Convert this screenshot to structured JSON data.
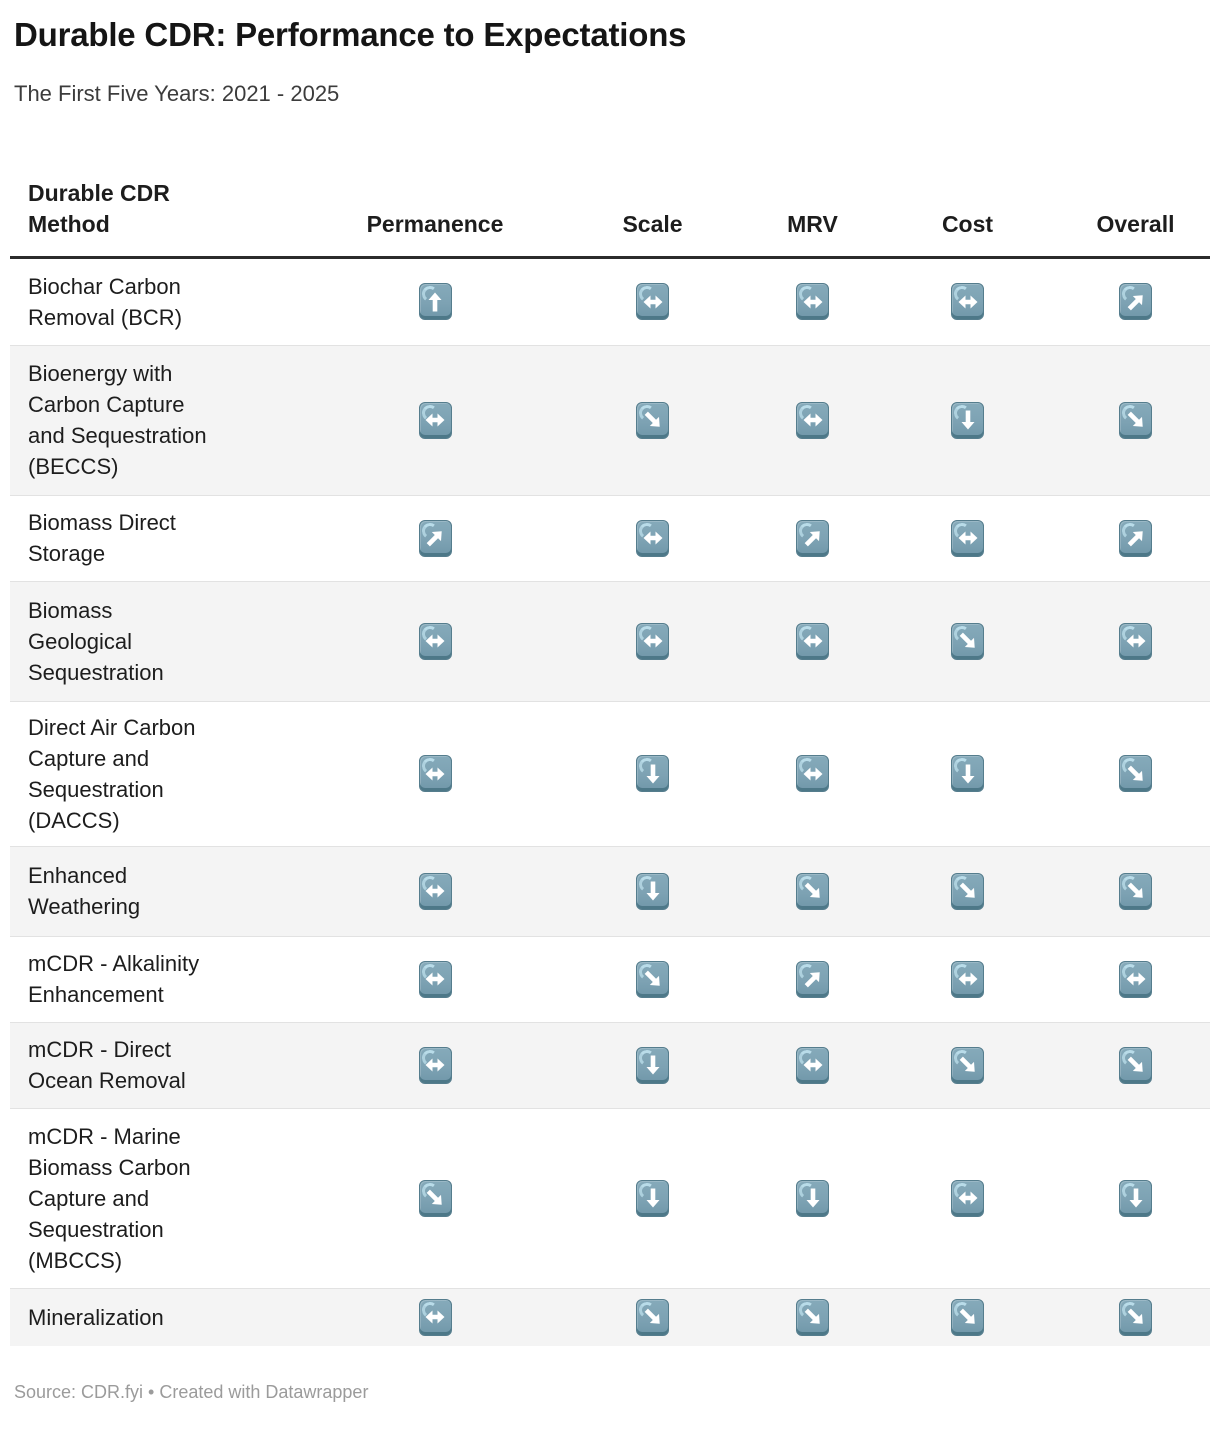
{
  "header": {
    "title": "Durable CDR: Performance to Expectations",
    "subtitle": "The First Five Years: 2021 - 2025"
  },
  "table": {
    "columns": [
      "Durable CDR\nMethod",
      "Permanence",
      "Scale",
      "MRV",
      "Cost",
      "Overall"
    ]
  },
  "chart_data": {
    "type": "table",
    "title": "Durable CDR: Performance to Expectations",
    "subtitle": "The First Five Years: 2021 - 2025",
    "columns": [
      "Durable CDR Method",
      "Permanence",
      "Scale",
      "MRV",
      "Cost",
      "Overall"
    ],
    "arrow_values_legend": [
      "up",
      "up-right",
      "sideways",
      "down-right",
      "down"
    ],
    "rows": [
      {
        "method": "Biochar Carbon\nRemoval (BCR)",
        "ratings": [
          "up",
          "sideways",
          "sideways",
          "sideways",
          "up-right"
        ]
      },
      {
        "method": "Bioenergy with\nCarbon Capture\nand Sequestration\n(BECCS)",
        "ratings": [
          "sideways",
          "down-right",
          "sideways",
          "down",
          "down-right"
        ]
      },
      {
        "method": "Biomass Direct\nStorage",
        "ratings": [
          "up-right",
          "sideways",
          "up-right",
          "sideways",
          "up-right"
        ]
      },
      {
        "method": "Biomass\nGeological\nSequestration",
        "ratings": [
          "sideways",
          "sideways",
          "sideways",
          "down-right",
          "sideways"
        ]
      },
      {
        "method": "Direct Air Carbon\nCapture and\nSequestration\n(DACCS)",
        "ratings": [
          "sideways",
          "down",
          "sideways",
          "down",
          "down-right"
        ]
      },
      {
        "method": "Enhanced\nWeathering",
        "ratings": [
          "sideways",
          "down",
          "down-right",
          "down-right",
          "down-right"
        ]
      },
      {
        "method": "mCDR - Alkalinity\nEnhancement",
        "ratings": [
          "sideways",
          "down-right",
          "up-right",
          "sideways",
          "sideways"
        ]
      },
      {
        "method": "mCDR - Direct\nOcean Removal",
        "ratings": [
          "sideways",
          "down",
          "sideways",
          "down-right",
          "down-right"
        ]
      },
      {
        "method": "mCDR - Marine\nBiomass Carbon\nCapture and\nSequestration\n(MBCCS)",
        "ratings": [
          "down-right",
          "down",
          "down",
          "sideways",
          "down"
        ]
      },
      {
        "method": "Mineralization",
        "ratings": [
          "sideways",
          "down-right",
          "down-right",
          "down-right",
          "down-right"
        ]
      }
    ]
  },
  "footer": {
    "text": "Source: CDR.fyi • Created with Datawrapper"
  },
  "colors": {
    "icon_square": "#7da2b3",
    "icon_border": "#557d8d",
    "icon_highlight": "#b9dce9",
    "arrow": "#ffffff",
    "zebra_row": "#f4f4f4",
    "header_rule": "#2b2b2b"
  }
}
